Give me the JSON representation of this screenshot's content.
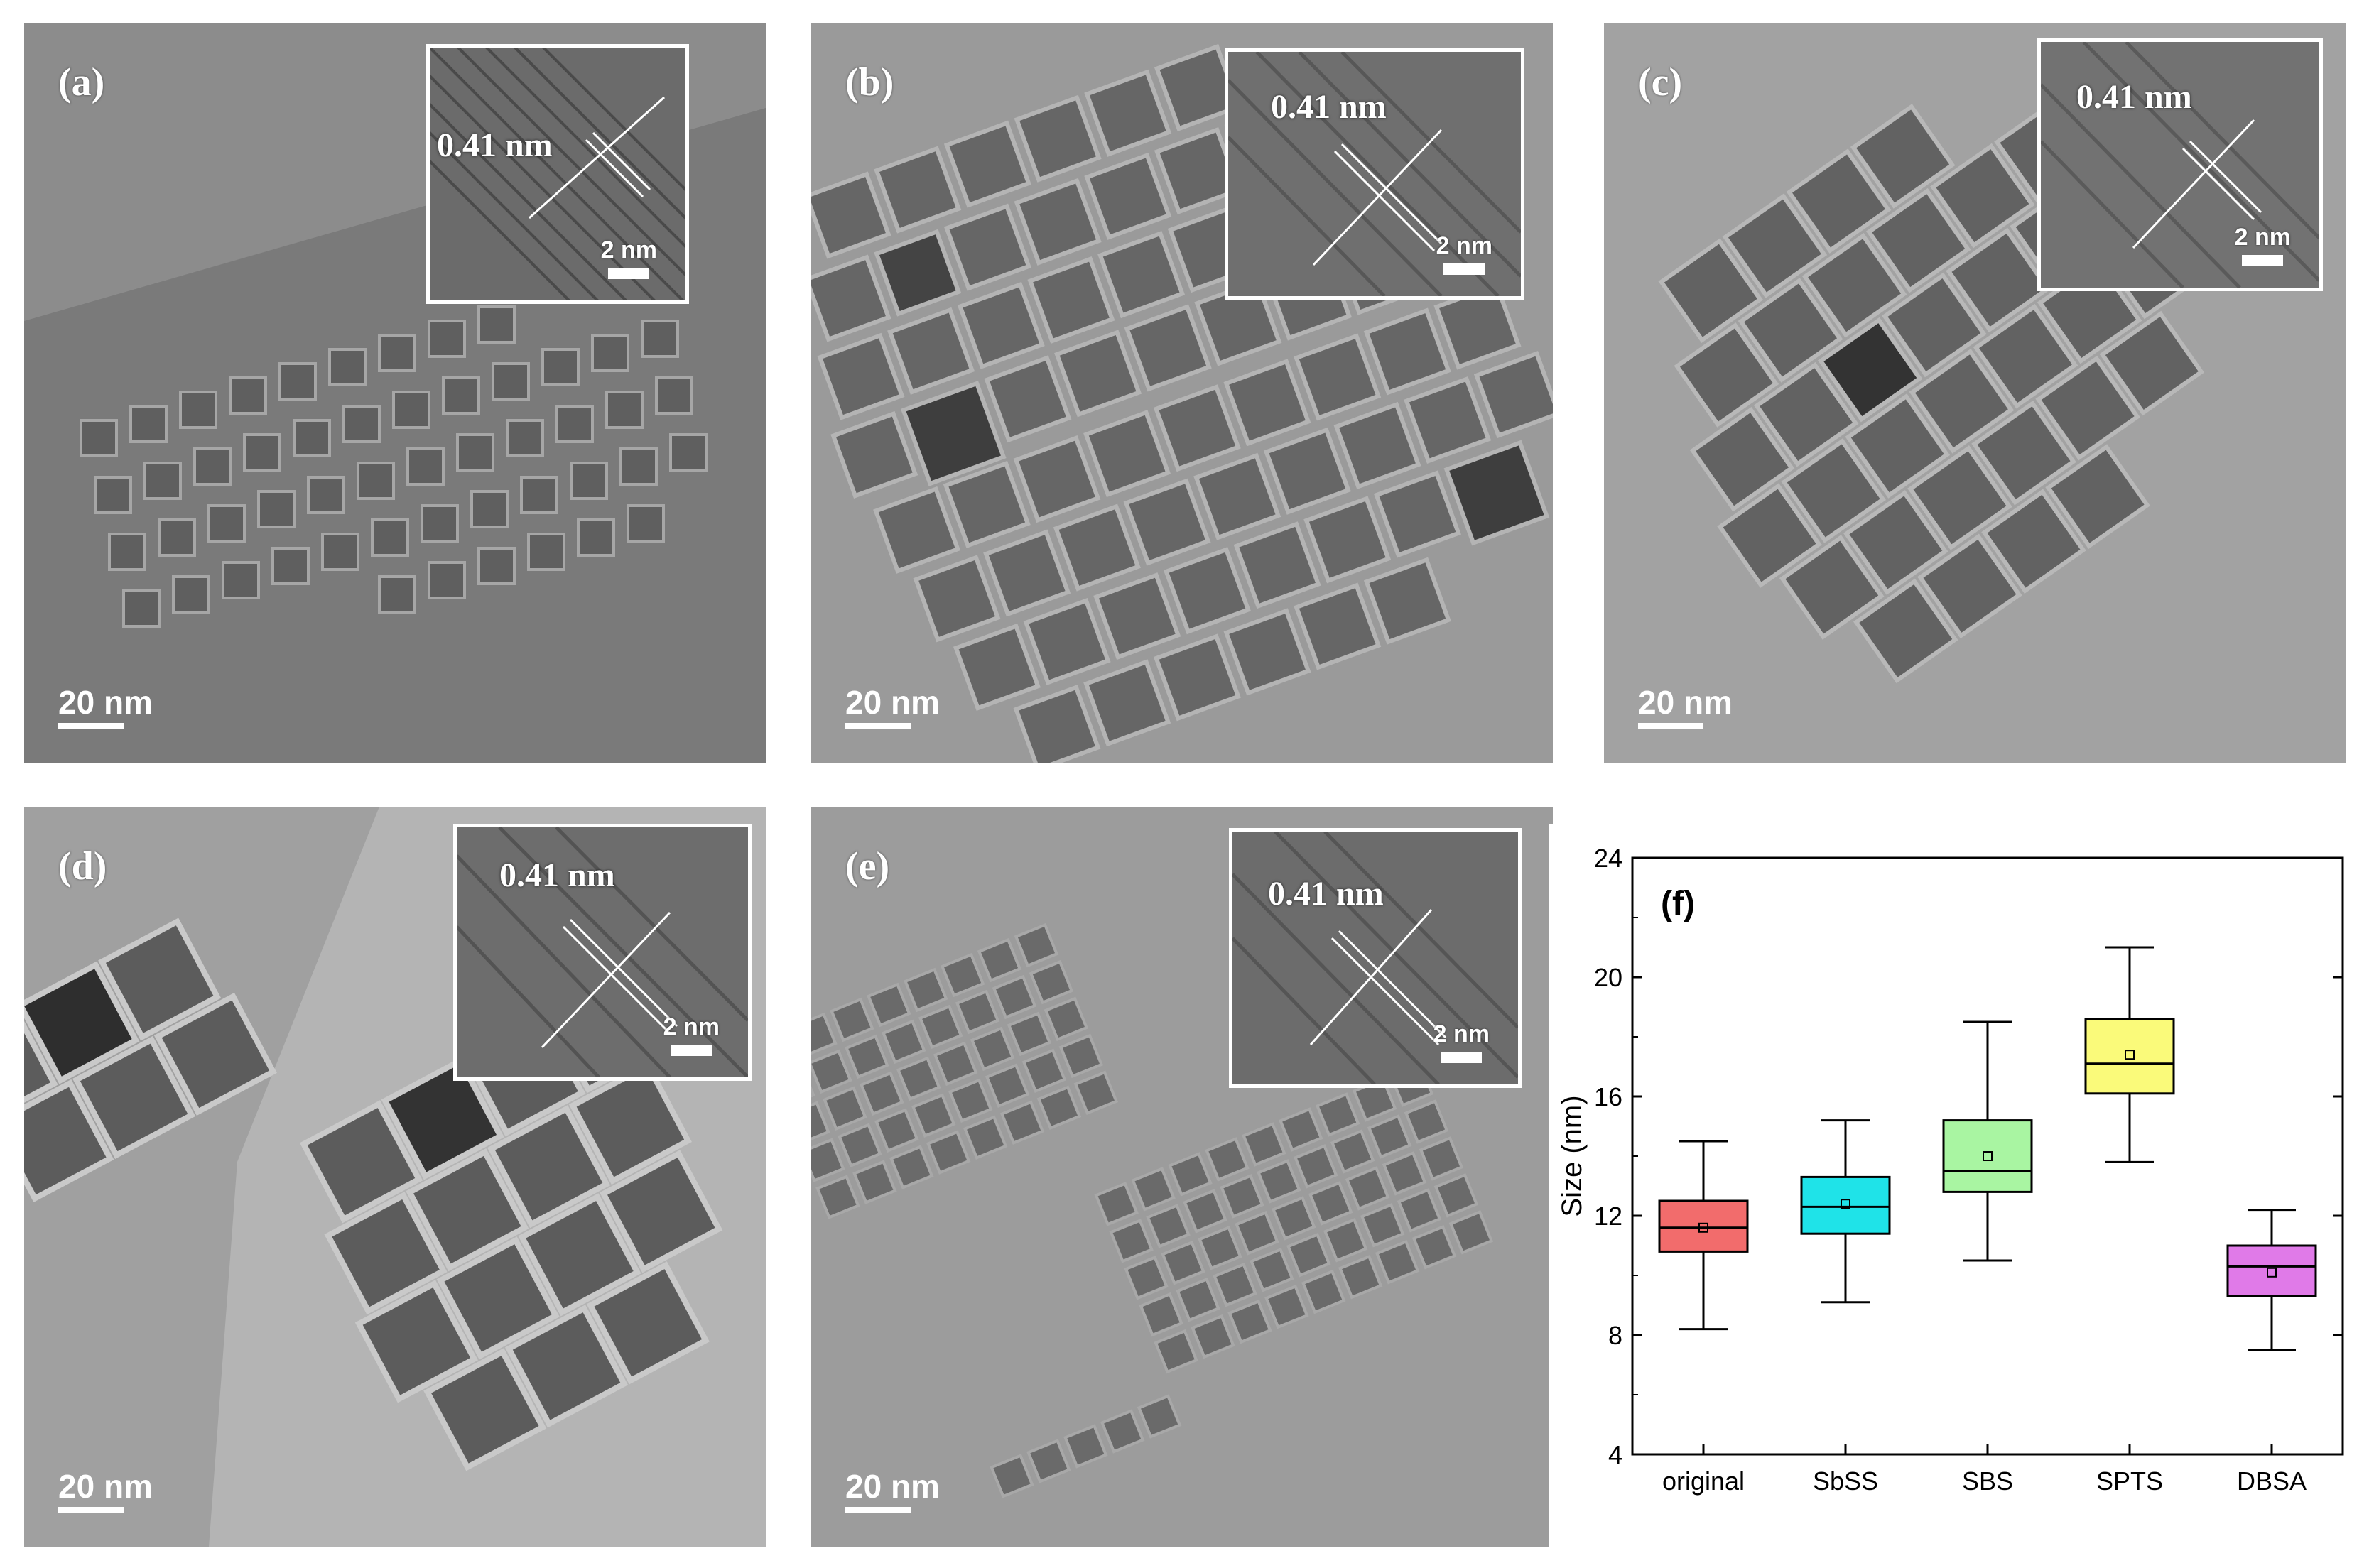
{
  "panels": [
    {
      "label": "(a)",
      "inset_spacing": "0.41 nm",
      "inset_scale": "2 nm",
      "scale_bar": "20 nm"
    },
    {
      "label": "(b)",
      "inset_spacing": "0.41 nm",
      "inset_scale": "2 nm",
      "scale_bar": "20 nm"
    },
    {
      "label": "(c)",
      "inset_spacing": "0.41 nm",
      "inset_scale": "2 nm",
      "scale_bar": "20 nm"
    },
    {
      "label": "(d)",
      "inset_spacing": "0.41 nm",
      "inset_scale": "2 nm",
      "scale_bar": "20 nm"
    },
    {
      "label": "(e)",
      "inset_spacing": "0.41 nm",
      "inset_scale": "2 nm",
      "scale_bar": "20 nm"
    }
  ],
  "chart_panel_label": "(f)",
  "chart_data": {
    "type": "box",
    "categories": [
      "original",
      "SbSS",
      "SBS",
      "SPTS",
      "DBSA"
    ],
    "ylabel": "Size (nm)",
    "xlabel": "",
    "ylim": [
      4,
      24
    ],
    "yticks": [
      4,
      8,
      12,
      16,
      20,
      24
    ],
    "boxes": [
      {
        "category": "original",
        "whisker_low": 8.2,
        "q1": 10.8,
        "median": 11.6,
        "q3": 12.5,
        "whisker_high": 14.5,
        "mean": 11.6,
        "color": "#f26c6c"
      },
      {
        "category": "SbSS",
        "whisker_low": 9.1,
        "q1": 11.4,
        "median": 12.3,
        "q3": 13.3,
        "whisker_high": 15.2,
        "mean": 12.4,
        "color": "#1fe3e8"
      },
      {
        "category": "SBS",
        "whisker_low": 10.5,
        "q1": 12.8,
        "median": 13.5,
        "q3": 15.2,
        "whisker_high": 18.5,
        "mean": 14.0,
        "color": "#a9f5a2"
      },
      {
        "category": "SPTS",
        "whisker_low": 13.8,
        "q1": 16.1,
        "median": 17.1,
        "q3": 18.6,
        "whisker_high": 21.0,
        "mean": 17.4,
        "color": "#fafa7a"
      },
      {
        "category": "DBSA",
        "whisker_low": 7.5,
        "q1": 9.3,
        "median": 10.3,
        "q3": 11.0,
        "whisker_high": 12.2,
        "mean": 10.1,
        "color": "#e07ae8"
      }
    ]
  }
}
